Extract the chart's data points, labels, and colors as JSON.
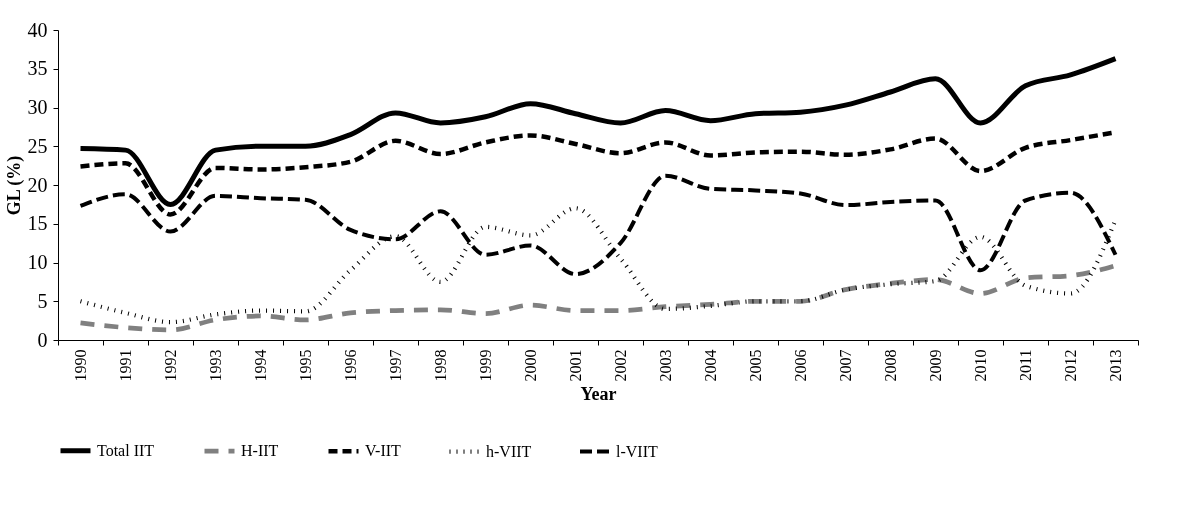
{
  "chart_data": {
    "type": "line",
    "xlabel": "Year",
    "ylabel": "GL (%)",
    "categories": [
      "1990",
      "1991",
      "1992",
      "1993",
      "1994",
      "1995",
      "1996",
      "1997",
      "1998",
      "1999",
      "2000",
      "2001",
      "2002",
      "2003",
      "2004",
      "2005",
      "2006",
      "2007",
      "2008",
      "2009",
      "2010",
      "2011",
      "2012",
      "2013"
    ],
    "ylim": [
      0,
      40
    ],
    "yticks": [
      0,
      5,
      10,
      15,
      20,
      25,
      30,
      35,
      40
    ],
    "grid": false,
    "legend": "bottom",
    "marker": "none",
    "series": [
      {
        "name": "Total IIT",
        "color": "#000000",
        "line_style": "solid",
        "values": [
          24.7,
          24.5,
          17.5,
          24.5,
          25,
          25,
          26.5,
          29.3,
          28,
          28.8,
          30.5,
          29.2,
          28,
          29.6,
          28.3,
          29.2,
          29.4,
          30.3,
          32,
          33.7,
          28,
          32.8,
          34.2,
          36.3
        ]
      },
      {
        "name": "H-IIT",
        "color": "#808080",
        "line_style": "dashed",
        "values": [
          2.2,
          1.6,
          1.3,
          2.6,
          3.1,
          2.6,
          3.5,
          3.8,
          3.9,
          3.4,
          4.5,
          3.8,
          3.8,
          4.3,
          4.6,
          5,
          5,
          6.5,
          7.3,
          7.8,
          6,
          8,
          8.3,
          9.6
        ]
      },
      {
        "name": "V-IIT",
        "color": "#000000",
        "line_style": "dashed",
        "values": [
          22.4,
          22.8,
          16.2,
          22.2,
          22,
          22.3,
          23,
          25.7,
          24,
          25.5,
          26.4,
          25.3,
          24.1,
          25.5,
          23.8,
          24.2,
          24.3,
          23.9,
          24.6,
          26,
          21.8,
          24.8,
          25.8,
          26.8
        ]
      },
      {
        "name": "h-VIIT",
        "color": "#000000",
        "line_style": "dotted",
        "values": [
          5,
          3.5,
          2.3,
          3.3,
          3.8,
          3.7,
          9,
          13.4,
          7.5,
          14.6,
          13.5,
          17,
          10.5,
          4,
          4.4,
          5,
          5,
          6.5,
          7.2,
          7.6,
          13.3,
          7,
          6,
          15.5
        ]
      },
      {
        "name": "l-VIIT",
        "color": "#000000",
        "line_style": "dashed",
        "values": [
          17.3,
          18.8,
          14,
          18.6,
          18.3,
          18.1,
          14.2,
          13,
          16.6,
          11,
          12.2,
          8.5,
          12.5,
          21.2,
          19.5,
          19.3,
          18.9,
          17.4,
          17.8,
          18,
          9,
          18,
          19,
          11
        ]
      }
    ]
  }
}
